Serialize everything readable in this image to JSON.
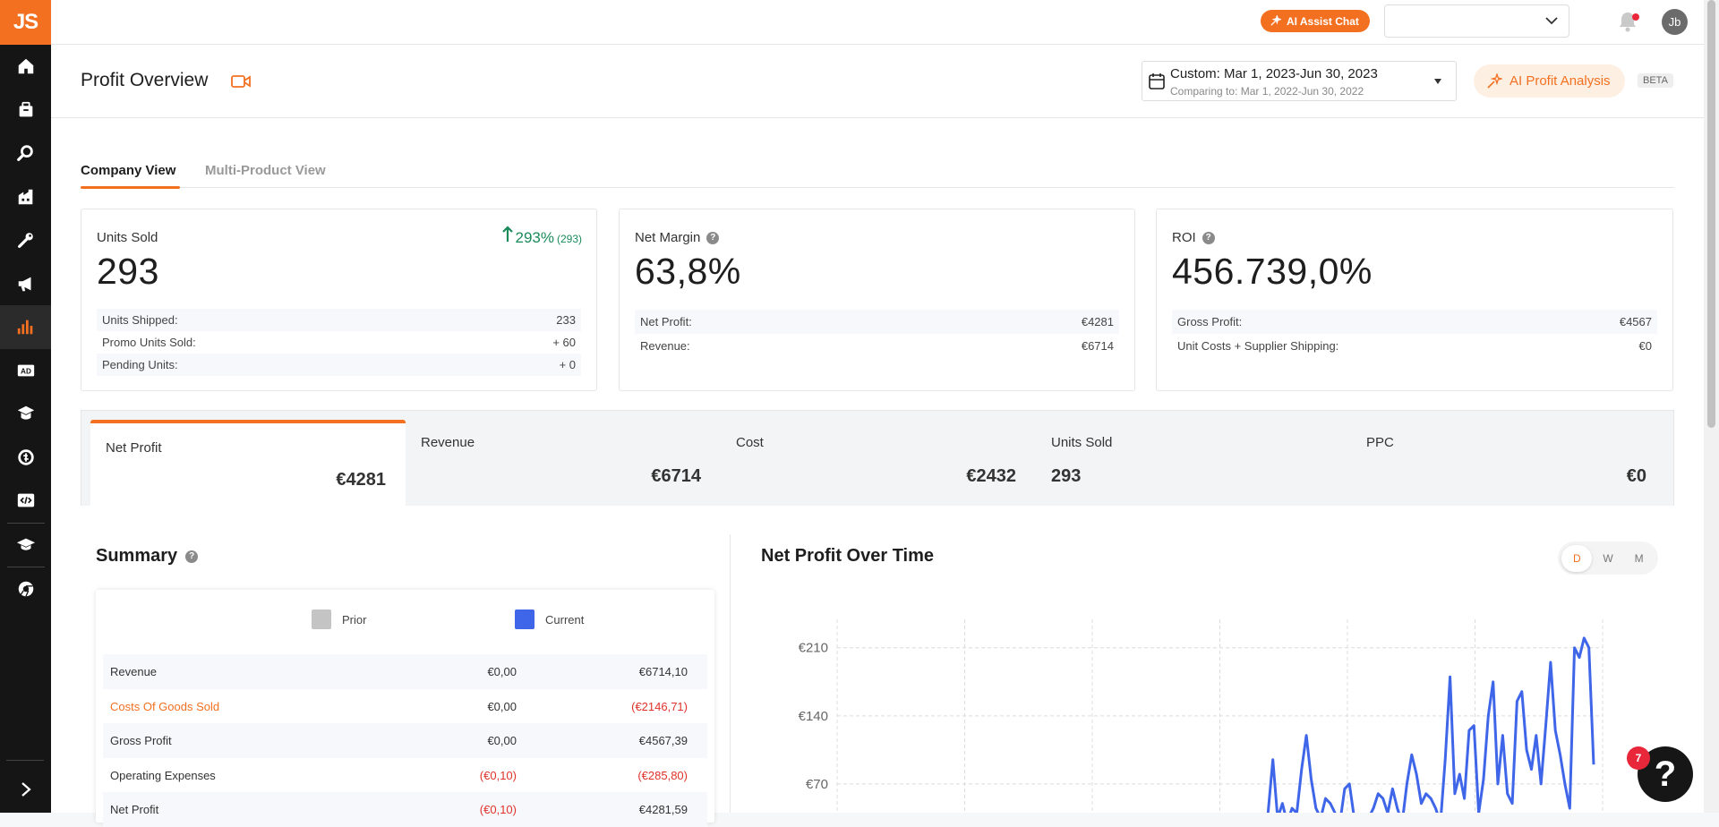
{
  "sidebar": {
    "logo": "JS",
    "items": [
      {
        "icon": "home-icon"
      },
      {
        "icon": "product-database-icon"
      },
      {
        "icon": "product-tracker-icon"
      },
      {
        "icon": "supplier-database-icon"
      },
      {
        "icon": "keyword-tools-icon"
      },
      {
        "icon": "marketing-megaphone-icon"
      },
      {
        "icon": "analytics-bar-chart-icon"
      },
      {
        "icon": "advertising-ad-icon"
      },
      {
        "icon": "academy-hat-icon"
      },
      {
        "icon": "coins-icon"
      },
      {
        "icon": "developer-code-icon"
      },
      {
        "icon": "training-cap-icon"
      },
      {
        "icon": "chrome-extension-icon"
      }
    ],
    "active_index": 6,
    "expand_icon": "chevron-right-icon"
  },
  "topbar": {
    "ai_chat_label": "AI Assist Chat",
    "select_value": "",
    "avatar_initials": "Jb"
  },
  "header": {
    "title": "Profit Overview",
    "date_range": "Custom: Mar 1, 2023-Jun 30, 2023",
    "comparing": "Comparing to: Mar 1, 2022-Jun 30, 2022",
    "ai_profit_label": "AI Profit Analysis",
    "beta_badge": "BETA"
  },
  "tabs": [
    {
      "label": "Company View",
      "active": true
    },
    {
      "label": "Multi-Product View",
      "active": false
    }
  ],
  "cards": {
    "units_sold": {
      "label": "Units Sold",
      "value": "293",
      "trend_pct": "293%",
      "trend_count": "(293)",
      "rows": [
        {
          "label": "Units Shipped:",
          "value": "233"
        },
        {
          "label": "Promo Units Sold:",
          "value": "+ 60"
        },
        {
          "label": "Pending Units:",
          "value": "+ 0"
        }
      ]
    },
    "net_margin": {
      "label": "Net Margin",
      "value": "63,8%",
      "rows": [
        {
          "label": "Net Profit:",
          "value": "€4281"
        },
        {
          "label": "Revenue:",
          "value": "€6714"
        }
      ]
    },
    "roi": {
      "label": "ROI",
      "value": "456.739,0%",
      "rows": [
        {
          "label": "Gross Profit:",
          "value": "€4567"
        },
        {
          "label": "Unit Costs + Supplier Shipping:",
          "value": "€0"
        }
      ]
    }
  },
  "metrics": [
    {
      "label": "Net Profit",
      "value": "€4281",
      "active": true
    },
    {
      "label": "Revenue",
      "value": "€6714",
      "active": false
    },
    {
      "label": "Cost",
      "value": "€2432",
      "active": false
    },
    {
      "label": "Units Sold",
      "value": "293",
      "active": false
    },
    {
      "label": "PPC",
      "value": "€0",
      "active": false
    }
  ],
  "summary": {
    "title": "Summary",
    "legend": [
      {
        "label": "Prior",
        "color": "#c4c4c4"
      },
      {
        "label": "Current",
        "color": "#3f66e8"
      }
    ],
    "rows": [
      {
        "label": "Revenue",
        "prior": "€0,00",
        "current": "€6714,10",
        "label_style": "normal",
        "prior_neg": false,
        "current_neg": false
      },
      {
        "label": "Costs Of Goods Sold",
        "prior": "€0,00",
        "current": "(€2146,71)",
        "label_style": "orange",
        "prior_neg": false,
        "current_neg": true
      },
      {
        "label": "Gross Profit",
        "prior": "€0,00",
        "current": "€4567,39",
        "label_style": "normal",
        "prior_neg": false,
        "current_neg": false
      },
      {
        "label": "Operating Expenses",
        "prior": "(€0,10)",
        "current": "(€285,80)",
        "label_style": "normal",
        "prior_neg": true,
        "current_neg": true
      },
      {
        "label": "Net Profit",
        "prior": "(€0,10)",
        "current": "€4281,59",
        "label_style": "normal",
        "prior_neg": true,
        "current_neg": false
      }
    ]
  },
  "chart": {
    "title": "Net Profit Over Time",
    "periods": [
      {
        "label": "D",
        "active": true
      },
      {
        "label": "W",
        "active": false
      },
      {
        "label": "M",
        "active": false
      }
    ]
  },
  "chart_data": {
    "type": "line",
    "title": "Net Profit Over Time",
    "xlabel": "",
    "ylabel": "",
    "y_ticks": [
      "€210",
      "€140",
      "€70"
    ],
    "y_tick_values": [
      210,
      140,
      70
    ],
    "ylim": [
      0,
      230
    ],
    "grid": true,
    "series": [
      {
        "color": "#3f66e8",
        "values": [
          0,
          0,
          0,
          0,
          0,
          0,
          0,
          0,
          0,
          0,
          0,
          0,
          0,
          0,
          0,
          0,
          0,
          0,
          0,
          0,
          0,
          0,
          0,
          0,
          0,
          0,
          0,
          0,
          0,
          0,
          0,
          0,
          0,
          0,
          0,
          0,
          0,
          0,
          0,
          0,
          0,
          0,
          0,
          0,
          0,
          0,
          0,
          0,
          0,
          0,
          0,
          0,
          0,
          0,
          0,
          0,
          0,
          0,
          0,
          0,
          0,
          0,
          0,
          0,
          0,
          0,
          0,
          0,
          0,
          0,
          0,
          0,
          0,
          0,
          0,
          0,
          0,
          0,
          0,
          0,
          0,
          0,
          0,
          0,
          0,
          0,
          0,
          0,
          0,
          0,
          40,
          95,
          35,
          50,
          30,
          45,
          40,
          85,
          120,
          75,
          45,
          35,
          55,
          50,
          40,
          30,
          65,
          70,
          35,
          30,
          20,
          35,
          45,
          60,
          55,
          40,
          65,
          45,
          30,
          70,
          100,
          80,
          50,
          60,
          55,
          45,
          30,
          95,
          180,
          60,
          80,
          55,
          125,
          130,
          40,
          75,
          140,
          175,
          70,
          120,
          60,
          50,
          155,
          165,
          105,
          85,
          120,
          70,
          130,
          195,
          125,
          100,
          70,
          45,
          210,
          200,
          220,
          210,
          90
        ]
      }
    ]
  }
}
